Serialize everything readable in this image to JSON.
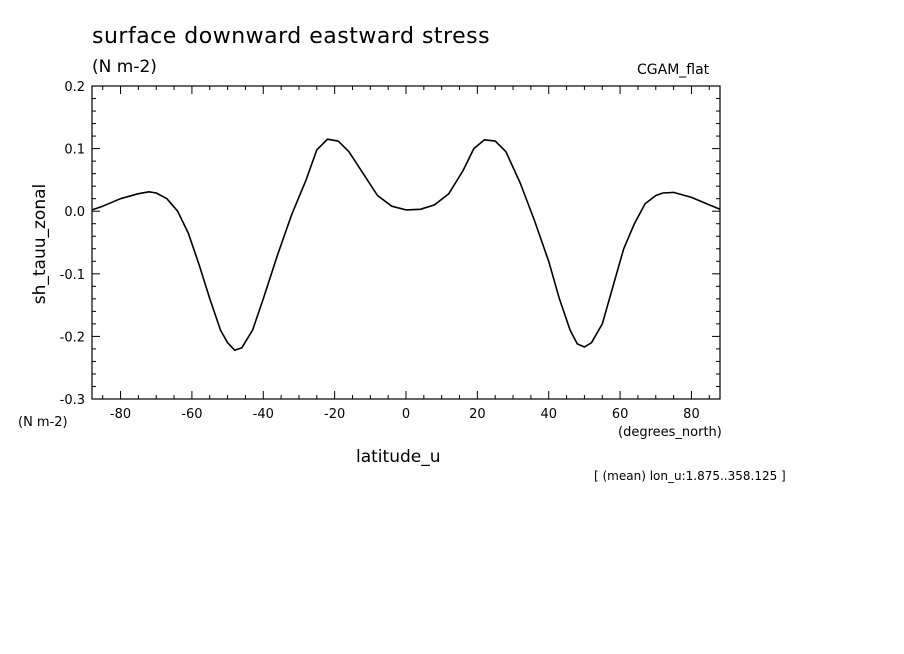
{
  "chart_data": {
    "type": "line",
    "title": "surface downward eastward stress",
    "subtitle": "(N m-2)",
    "dataset_label": "CGAM_flat",
    "xlabel": "latitude_u",
    "xunit": "(degrees_north)",
    "ylabel": "sh_tauu_zonal",
    "yunit": "(N m-2)",
    "note": "[ (mean) lon_u:1.875..358.125 ]",
    "xlim": [
      -88,
      88
    ],
    "ylim": [
      -0.3,
      0.2
    ],
    "xticks": [
      -80,
      -60,
      -40,
      -20,
      0,
      20,
      40,
      60,
      80
    ],
    "xtick_labels": [
      "-80",
      "-60",
      "-40",
      "-20",
      "0",
      "20",
      "40",
      "60",
      "80"
    ],
    "yticks": [
      -0.3,
      -0.2,
      -0.1,
      0.0,
      0.1,
      0.2
    ],
    "ytick_labels": [
      "-0.3",
      "-0.2",
      "-0.1",
      "0.0",
      "0.1",
      "0.2"
    ],
    "series": [
      {
        "x": [
          -88,
          -85,
          -80,
          -75,
          -72,
          -70,
          -67,
          -64,
          -61,
          -58,
          -55,
          -52,
          -50,
          -48,
          -46,
          -43,
          -40,
          -36,
          -32,
          -28,
          -25,
          -22,
          -19,
          -16,
          -12,
          -8,
          -4,
          0,
          4,
          8,
          12,
          16,
          19,
          22,
          25,
          28,
          32,
          36,
          40,
          43,
          46,
          48,
          50,
          52,
          55,
          58,
          61,
          64,
          67,
          70,
          72,
          75,
          80,
          85,
          88
        ],
        "y": [
          0.002,
          0.008,
          0.02,
          0.028,
          0.031,
          0.029,
          0.02,
          0.0,
          -0.035,
          -0.085,
          -0.14,
          -0.19,
          -0.21,
          -0.222,
          -0.218,
          -0.19,
          -0.14,
          -0.07,
          -0.005,
          0.05,
          0.098,
          0.115,
          0.112,
          0.095,
          0.06,
          0.025,
          0.008,
          0.002,
          0.003,
          0.01,
          0.028,
          0.065,
          0.1,
          0.114,
          0.112,
          0.095,
          0.045,
          -0.015,
          -0.08,
          -0.14,
          -0.19,
          -0.212,
          -0.217,
          -0.21,
          -0.18,
          -0.12,
          -0.06,
          -0.02,
          0.012,
          0.025,
          0.029,
          0.03,
          0.022,
          0.01,
          0.003
        ]
      }
    ]
  }
}
